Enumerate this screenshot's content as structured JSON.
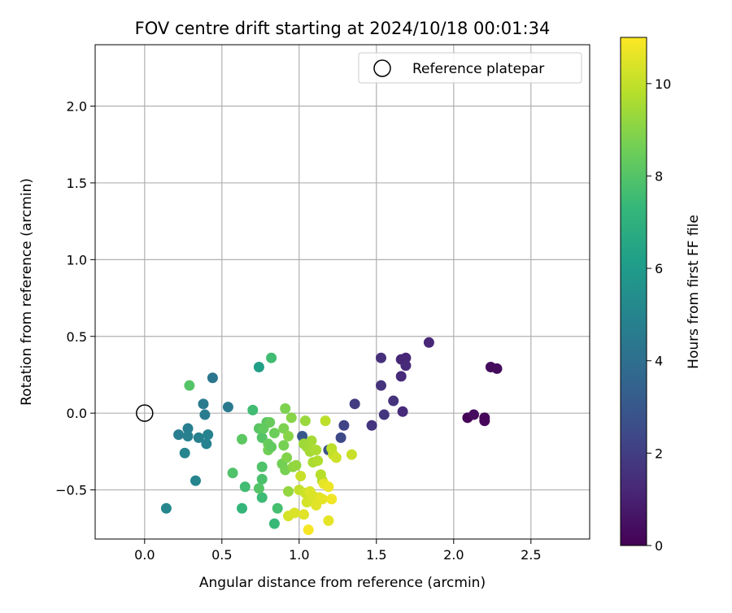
{
  "chart_data": {
    "type": "scatter",
    "title": "FOV centre drift starting at 2024/10/18 00:01:34",
    "xlabel": "Angular distance from reference (arcmin)",
    "ylabel": "Rotation from reference (arcmin)",
    "xlim": [
      -0.32,
      2.88
    ],
    "ylim": [
      -0.82,
      2.4
    ],
    "xticks": [
      0.0,
      0.5,
      1.0,
      1.5,
      2.0,
      2.5
    ],
    "xtick_labels": [
      "0.0",
      "0.5",
      "1.0",
      "1.5",
      "2.0",
      "2.5"
    ],
    "yticks": [
      -0.5,
      0.0,
      0.5,
      1.0,
      1.5,
      2.0
    ],
    "ytick_labels": [
      "−0.5",
      "0.0",
      "0.5",
      "1.0",
      "1.5",
      "2.0"
    ],
    "grid": true,
    "legend": {
      "placement": "top-right",
      "entries": [
        {
          "label": "Reference platepar",
          "marker": "open-circle"
        }
      ]
    },
    "reference_point": {
      "x": 0.0,
      "y": 0.0
    },
    "colorbar": {
      "label": "Hours from first FF file",
      "colormap": "viridis",
      "range": [
        0,
        11
      ],
      "ticks": [
        0,
        2,
        4,
        6,
        8,
        10
      ],
      "tick_labels": [
        "0",
        "2",
        "4",
        "6",
        "8",
        "10"
      ],
      "stops": [
        "#440154",
        "#482878",
        "#3e4a89",
        "#31688e",
        "#26828e",
        "#1f9e89",
        "#35b779",
        "#6ece58",
        "#b5de2b",
        "#fde725"
      ]
    },
    "series": [
      {
        "points": [
          {
            "x": 2.09,
            "y": -0.03,
            "c": 0.1
          },
          {
            "x": 2.2,
            "y": -0.03,
            "c": 0.2
          },
          {
            "x": 2.2,
            "y": -0.05,
            "c": 0.2
          },
          {
            "x": 2.13,
            "y": -0.01,
            "c": 0.3
          },
          {
            "x": 2.24,
            "y": 0.3,
            "c": 0.3
          },
          {
            "x": 2.28,
            "y": 0.29,
            "c": 0.3
          },
          {
            "x": 1.84,
            "y": 0.46,
            "c": 1.2
          },
          {
            "x": 1.69,
            "y": 0.36,
            "c": 1.2
          },
          {
            "x": 1.66,
            "y": 0.35,
            "c": 1.2
          },
          {
            "x": 1.69,
            "y": 0.31,
            "c": 1.3
          },
          {
            "x": 1.66,
            "y": 0.24,
            "c": 1.3
          },
          {
            "x": 1.67,
            "y": 0.01,
            "c": 1.3
          },
          {
            "x": 1.53,
            "y": 0.36,
            "c": 1.5
          },
          {
            "x": 1.53,
            "y": 0.18,
            "c": 1.6
          },
          {
            "x": 1.61,
            "y": 0.08,
            "c": 1.6
          },
          {
            "x": 1.55,
            "y": -0.01,
            "c": 1.7
          },
          {
            "x": 1.47,
            "y": -0.08,
            "c": 1.7
          },
          {
            "x": 1.36,
            "y": 0.06,
            "c": 1.9
          },
          {
            "x": 1.29,
            "y": -0.08,
            "c": 2.2
          },
          {
            "x": 1.27,
            "y": -0.16,
            "c": 2.4
          },
          {
            "x": 1.19,
            "y": -0.24,
            "c": 2.8
          },
          {
            "x": 1.02,
            "y": -0.15,
            "c": 3.0
          },
          {
            "x": 0.44,
            "y": 0.23,
            "c": 4.3
          },
          {
            "x": 0.38,
            "y": 0.06,
            "c": 4.5
          },
          {
            "x": 0.54,
            "y": 0.04,
            "c": 4.5
          },
          {
            "x": 0.39,
            "y": -0.01,
            "c": 4.6
          },
          {
            "x": 0.28,
            "y": -0.1,
            "c": 4.7
          },
          {
            "x": 0.22,
            "y": -0.14,
            "c": 4.7
          },
          {
            "x": 0.28,
            "y": -0.15,
            "c": 4.8
          },
          {
            "x": 0.35,
            "y": -0.16,
            "c": 4.8
          },
          {
            "x": 0.41,
            "y": -0.14,
            "c": 4.9
          },
          {
            "x": 0.4,
            "y": -0.2,
            "c": 4.9
          },
          {
            "x": 0.26,
            "y": -0.26,
            "c": 5.0
          },
          {
            "x": 0.33,
            "y": -0.44,
            "c": 5.0
          },
          {
            "x": 0.14,
            "y": -0.62,
            "c": 5.1
          },
          {
            "x": 0.74,
            "y": 0.3,
            "c": 6.2
          },
          {
            "x": 0.82,
            "y": 0.36,
            "c": 7.6
          },
          {
            "x": 0.29,
            "y": 0.18,
            "c": 8.0
          },
          {
            "x": 0.7,
            "y": 0.02,
            "c": 7.6
          },
          {
            "x": 0.63,
            "y": -0.62,
            "c": 7.3
          },
          {
            "x": 0.65,
            "y": -0.48,
            "c": 7.6
          },
          {
            "x": 0.84,
            "y": -0.72,
            "c": 7.4
          },
          {
            "x": 0.86,
            "y": -0.62,
            "c": 7.7
          },
          {
            "x": 0.76,
            "y": -0.55,
            "c": 7.5
          },
          {
            "x": 0.57,
            "y": -0.39,
            "c": 7.9
          },
          {
            "x": 0.74,
            "y": -0.49,
            "c": 8.0
          },
          {
            "x": 0.76,
            "y": -0.43,
            "c": 7.8
          },
          {
            "x": 0.76,
            "y": -0.35,
            "c": 7.9
          },
          {
            "x": 0.63,
            "y": -0.17,
            "c": 8.2
          },
          {
            "x": 0.74,
            "y": -0.1,
            "c": 8.1
          },
          {
            "x": 0.76,
            "y": -0.16,
            "c": 8.0
          },
          {
            "x": 0.79,
            "y": -0.06,
            "c": 8.1
          },
          {
            "x": 0.81,
            "y": -0.06,
            "c": 8.4
          },
          {
            "x": 0.84,
            "y": -0.13,
            "c": 8.5
          },
          {
            "x": 0.8,
            "y": -0.2,
            "c": 8.4
          },
          {
            "x": 0.8,
            "y": -0.24,
            "c": 8.6
          },
          {
            "x": 0.82,
            "y": -0.22,
            "c": 8.3
          },
          {
            "x": 0.77,
            "y": -0.1,
            "c": 8.3
          },
          {
            "x": 0.89,
            "y": -0.33,
            "c": 8.6
          },
          {
            "x": 0.91,
            "y": -0.37,
            "c": 8.7
          },
          {
            "x": 0.9,
            "y": -0.21,
            "c": 8.7
          },
          {
            "x": 0.9,
            "y": -0.1,
            "c": 8.8
          },
          {
            "x": 0.91,
            "y": 0.03,
            "c": 8.8
          },
          {
            "x": 0.92,
            "y": -0.29,
            "c": 8.9
          },
          {
            "x": 0.93,
            "y": -0.15,
            "c": 9.0
          },
          {
            "x": 0.95,
            "y": -0.03,
            "c": 9.0
          },
          {
            "x": 0.96,
            "y": -0.35,
            "c": 9.1
          },
          {
            "x": 0.98,
            "y": -0.34,
            "c": 9.2
          },
          {
            "x": 1.04,
            "y": -0.05,
            "c": 9.3
          },
          {
            "x": 1.03,
            "y": -0.2,
            "c": 9.4
          },
          {
            "x": 1.05,
            "y": -0.22,
            "c": 9.4
          },
          {
            "x": 1.08,
            "y": -0.18,
            "c": 9.5
          },
          {
            "x": 1.07,
            "y": -0.25,
            "c": 9.5
          },
          {
            "x": 1.09,
            "y": -0.32,
            "c": 9.6
          },
          {
            "x": 1.11,
            "y": -0.24,
            "c": 9.6
          },
          {
            "x": 1.12,
            "y": -0.31,
            "c": 9.7
          },
          {
            "x": 1.14,
            "y": -0.4,
            "c": 9.8
          },
          {
            "x": 1.15,
            "y": -0.44,
            "c": 9.8
          },
          {
            "x": 1.17,
            "y": -0.05,
            "c": 9.9
          },
          {
            "x": 1.21,
            "y": -0.23,
            "c": 9.9
          },
          {
            "x": 1.22,
            "y": -0.27,
            "c": 10.0
          },
          {
            "x": 1.24,
            "y": -0.29,
            "c": 10.2
          },
          {
            "x": 1.34,
            "y": -0.27,
            "c": 10.1
          },
          {
            "x": 0.93,
            "y": -0.51,
            "c": 9.2
          },
          {
            "x": 1.0,
            "y": -0.5,
            "c": 10.0
          },
          {
            "x": 1.01,
            "y": -0.41,
            "c": 10.1
          },
          {
            "x": 1.04,
            "y": -0.52,
            "c": 10.2
          },
          {
            "x": 1.05,
            "y": -0.58,
            "c": 10.3
          },
          {
            "x": 1.07,
            "y": -0.51,
            "c": 10.4
          },
          {
            "x": 1.09,
            "y": -0.54,
            "c": 10.4
          },
          {
            "x": 1.11,
            "y": -0.6,
            "c": 10.5
          },
          {
            "x": 1.13,
            "y": -0.55,
            "c": 10.5
          },
          {
            "x": 1.15,
            "y": -0.56,
            "c": 10.6
          },
          {
            "x": 1.16,
            "y": -0.46,
            "c": 10.6
          },
          {
            "x": 1.19,
            "y": -0.48,
            "c": 10.7
          },
          {
            "x": 1.21,
            "y": -0.56,
            "c": 10.8
          },
          {
            "x": 1.19,
            "y": -0.7,
            "c": 10.6
          },
          {
            "x": 0.93,
            "y": -0.67,
            "c": 10.3
          },
          {
            "x": 0.97,
            "y": -0.65,
            "c": 10.4
          },
          {
            "x": 1.03,
            "y": -0.66,
            "c": 10.5
          },
          {
            "x": 1.06,
            "y": -0.76,
            "c": 10.9
          }
        ]
      }
    ]
  }
}
